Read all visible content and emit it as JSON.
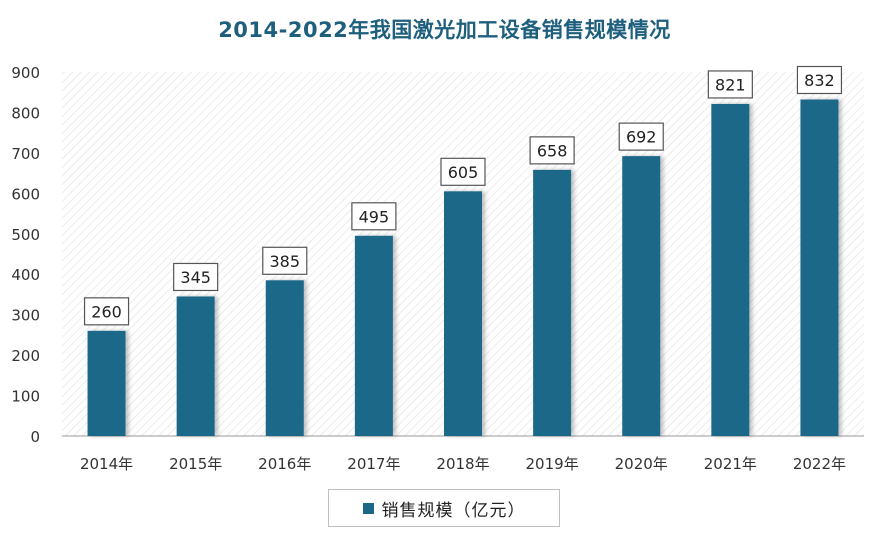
{
  "chart_data": {
    "type": "bar",
    "title": "2014-2022年我国激光加工设备销售规模情况",
    "categories": [
      "2014年",
      "2015年",
      "2016年",
      "2017年",
      "2018年",
      "2019年",
      "2020年",
      "2021年",
      "2022年"
    ],
    "series": [
      {
        "name": "销售规模（亿元）",
        "values": [
          260,
          345,
          385,
          495,
          605,
          658,
          692,
          821,
          832
        ]
      }
    ],
    "ylim": [
      0,
      900
    ],
    "yticks": [
      0,
      100,
      200,
      300,
      400,
      500,
      600,
      700,
      800,
      900
    ],
    "grid": false,
    "legend_position": "bottom",
    "data_labels": true,
    "colors": {
      "bar": "#1b6788",
      "title": "#1f5f7e"
    }
  }
}
